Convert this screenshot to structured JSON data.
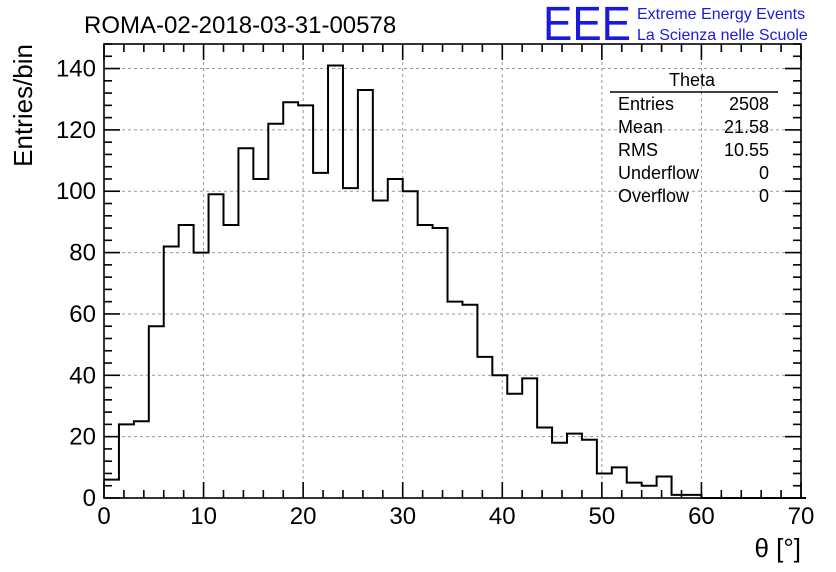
{
  "header": {
    "run_title": "ROMA-02-2018-03-31-00578",
    "logo_text": "EEE",
    "logo_line1": "Extreme Energy Events",
    "logo_line2": "La Scienza nelle Scuole",
    "brand_color": "#1a1adc"
  },
  "stats": {
    "title": "Theta",
    "rows": [
      {
        "label": "Entries",
        "value": "2508"
      },
      {
        "label": "Mean",
        "value": "21.58"
      },
      {
        "label": "RMS",
        "value": "10.55"
      },
      {
        "label": "Underflow",
        "value": "0"
      },
      {
        "label": "Overflow",
        "value": "0"
      }
    ]
  },
  "chart_data": {
    "type": "histogram",
    "xlabel": "θ [°]",
    "ylabel": "Entries/bin",
    "xlim": [
      0,
      70
    ],
    "ylim": [
      0,
      148
    ],
    "xticks": [
      0,
      10,
      20,
      30,
      40,
      50,
      60,
      70
    ],
    "yticks": [
      0,
      20,
      40,
      60,
      80,
      100,
      120,
      140
    ],
    "grid": true,
    "bin_width": 1.5,
    "bin_edges_start": 0,
    "values": [
      6,
      24,
      25,
      56,
      82,
      89,
      80,
      99,
      89,
      114,
      104,
      122,
      129,
      128,
      106,
      141,
      101,
      133,
      97,
      104,
      100,
      89,
      88,
      64,
      63,
      46,
      40,
      34,
      39,
      23,
      18,
      21,
      19,
      8,
      10,
      5,
      4,
      7,
      1,
      1,
      0,
      0,
      0,
      0,
      0,
      0,
      0
    ]
  }
}
